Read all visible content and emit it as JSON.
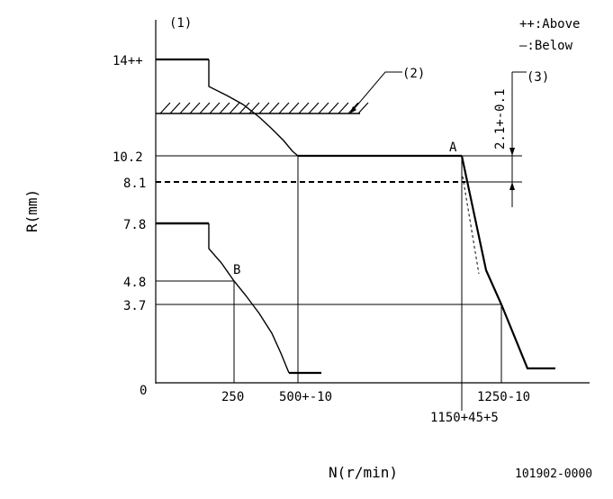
{
  "diagram": {
    "markers": {
      "m1": "(1)",
      "m2": "(2)",
      "m3": "(3)"
    },
    "legend": {
      "above": "++:Above",
      "below": "—:Below"
    },
    "y_axis": {
      "title": "R(mm)",
      "ticks": [
        "14++",
        "10.2",
        "8.1",
        "7.8",
        "4.8",
        "3.7",
        "0"
      ]
    },
    "x_axis": {
      "title": "N(r/min)",
      "ticks": [
        "250",
        "500+-10",
        "1250-10",
        "1150+45+5"
      ]
    },
    "points": {
      "A": "A",
      "B": "B"
    },
    "dimension": "2.1+-0.1",
    "code": "101902-0000"
  }
}
